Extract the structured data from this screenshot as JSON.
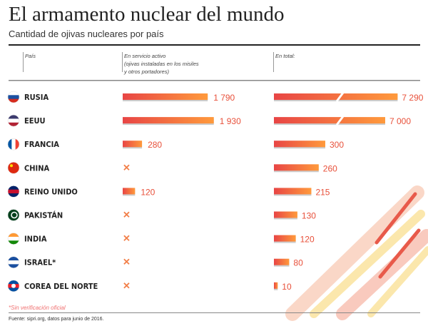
{
  "title": "El armamento nuclear del mundo",
  "subtitle": "Cantidad de ojivas nucleares por país",
  "headers": {
    "country": "País",
    "active": "En servicio activo\n(ojivas instaladas en los misiles\ny otros portadores)",
    "total": "En total:"
  },
  "footnote": "*Sin verificación oficial",
  "source": "Fuente: sipri.org, datos para junio de 2016.",
  "colors": {
    "bar_start": "#e84545",
    "bar_end": "#ff9a3c",
    "label": "#e8503a",
    "cross": "#f2804a"
  },
  "chart_data": {
    "type": "bar",
    "categories": [
      "RUSIA",
      "EEUU",
      "FRANCIA",
      "CHINA",
      "REINO UNIDO",
      "PAKISTÁN",
      "INDIA",
      "ISRAEL*",
      "COREA DEL NORTE"
    ],
    "flags": [
      "russia-flag",
      "usa-flag",
      "france-flag",
      "china-flag",
      "uk-flag",
      "pakistan-flag",
      "india-flag",
      "israel-flag",
      "north-korea-flag"
    ],
    "series": [
      {
        "name": "En servicio activo",
        "values": [
          1790,
          1930,
          280,
          null,
          120,
          null,
          null,
          null,
          null
        ],
        "labels": [
          "1 790",
          "1 930",
          "280",
          "✕",
          "120",
          "✕",
          "✕",
          "✕",
          "✕"
        ]
      },
      {
        "name": "En total",
        "values": [
          7290,
          7000,
          300,
          260,
          215,
          130,
          120,
          80,
          10
        ],
        "labels": [
          "7 290",
          "7 000",
          "300",
          "260",
          "215",
          "130",
          "120",
          "80",
          "10"
        ],
        "broken_axis": [
          true,
          true,
          false,
          false,
          false,
          false,
          false,
          false,
          false
        ]
      }
    ]
  }
}
